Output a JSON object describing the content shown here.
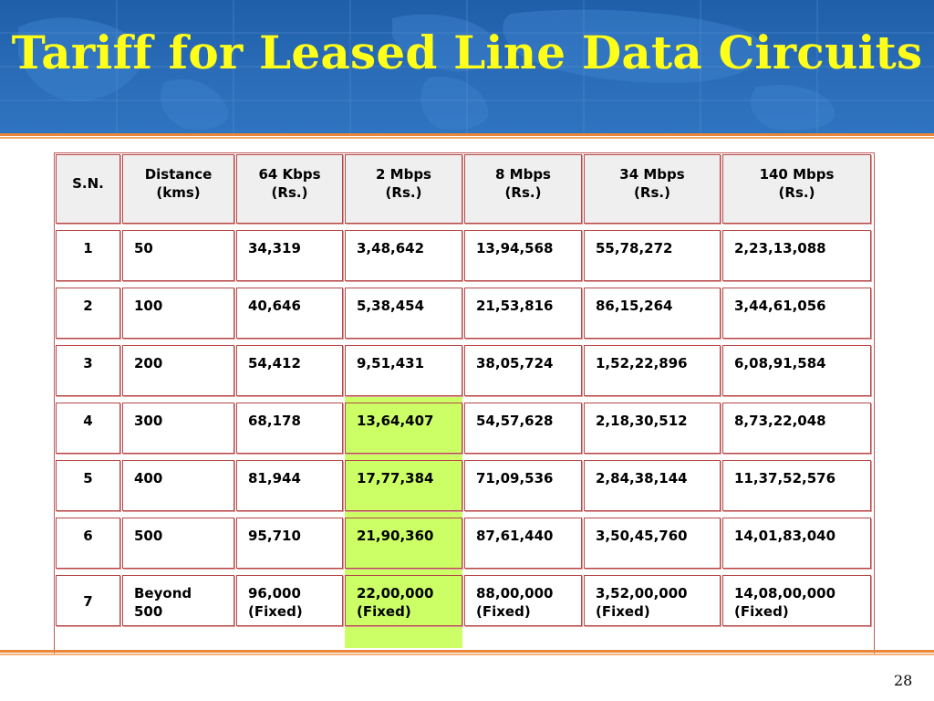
{
  "slide": {
    "title": "Tariff for Leased Line Data Circuits",
    "page_number": "28"
  },
  "table": {
    "headers": [
      {
        "line1": "S.N.",
        "line2": ""
      },
      {
        "line1": "Distance",
        "line2": "(kms)"
      },
      {
        "line1": "64 Kbps",
        "line2": "(Rs.)"
      },
      {
        "line1": "2 Mbps",
        "line2": "(Rs.)"
      },
      {
        "line1": "8 Mbps",
        "line2": "(Rs.)"
      },
      {
        "line1": "34 Mbps",
        "line2": "(Rs.)"
      },
      {
        "line1": "140 Mbps",
        "line2": "(Rs.)"
      }
    ],
    "rows": [
      [
        {
          "l1": "1",
          "l2": ""
        },
        {
          "l1": "50",
          "l2": ""
        },
        {
          "l1": "34,319",
          "l2": ""
        },
        {
          "l1": "3,48,642",
          "l2": ""
        },
        {
          "l1": "13,94,568",
          "l2": ""
        },
        {
          "l1": "55,78,272",
          "l2": ""
        },
        {
          "l1": "2,23,13,088",
          "l2": ""
        }
      ],
      [
        {
          "l1": "2",
          "l2": ""
        },
        {
          "l1": "100",
          "l2": ""
        },
        {
          "l1": "40,646",
          "l2": ""
        },
        {
          "l1": "5,38,454",
          "l2": ""
        },
        {
          "l1": "21,53,816",
          "l2": ""
        },
        {
          "l1": "86,15,264",
          "l2": ""
        },
        {
          "l1": "3,44,61,056",
          "l2": ""
        }
      ],
      [
        {
          "l1": "3",
          "l2": ""
        },
        {
          "l1": "200",
          "l2": ""
        },
        {
          "l1": "54,412",
          "l2": ""
        },
        {
          "l1": "9,51,431",
          "l2": ""
        },
        {
          "l1": "38,05,724",
          "l2": ""
        },
        {
          "l1": "1,52,22,896",
          "l2": ""
        },
        {
          "l1": "6,08,91,584",
          "l2": ""
        }
      ],
      [
        {
          "l1": "4",
          "l2": ""
        },
        {
          "l1": "300",
          "l2": ""
        },
        {
          "l1": "68,178",
          "l2": ""
        },
        {
          "l1": "13,64,407",
          "l2": ""
        },
        {
          "l1": "54,57,628",
          "l2": ""
        },
        {
          "l1": "2,18,30,512",
          "l2": ""
        },
        {
          "l1": "8,73,22,048",
          "l2": ""
        }
      ],
      [
        {
          "l1": "5",
          "l2": ""
        },
        {
          "l1": "400",
          "l2": ""
        },
        {
          "l1": "81,944",
          "l2": ""
        },
        {
          "l1": "17,77,384",
          "l2": ""
        },
        {
          "l1": "71,09,536",
          "l2": ""
        },
        {
          "l1": "2,84,38,144",
          "l2": ""
        },
        {
          "l1": "11,37,52,576",
          "l2": ""
        }
      ],
      [
        {
          "l1": "6",
          "l2": ""
        },
        {
          "l1": "500",
          "l2": ""
        },
        {
          "l1": "95,710",
          "l2": ""
        },
        {
          "l1": "21,90,360",
          "l2": ""
        },
        {
          "l1": "87,61,440",
          "l2": ""
        },
        {
          "l1": "3,50,45,760",
          "l2": ""
        },
        {
          "l1": "14,01,83,040",
          "l2": ""
        }
      ],
      [
        {
          "l1": "7",
          "l2": ""
        },
        {
          "l1": "Beyond",
          "l2": "500"
        },
        {
          "l1": "96,000",
          "l2": "(Fixed)"
        },
        {
          "l1": "22,00,000",
          "l2": "(Fixed)"
        },
        {
          "l1": "88,00,000",
          "l2": "(Fixed)"
        },
        {
          "l1": "3,52,00,000",
          "l2": "(Fixed)"
        },
        {
          "l1": "14,08,00,000",
          "l2": "(Fixed)"
        }
      ]
    ],
    "highlighted_column_index": 3,
    "highlighted_row_indices": [
      3,
      4,
      5,
      6
    ]
  },
  "colors": {
    "header_bg": "#2a6cb8",
    "title_text": "#ffff1a",
    "accent_rule": "#e8863a",
    "cell_border": "#b54848",
    "header_cell_bg": "#efefef",
    "highlight": "#ccff66"
  }
}
